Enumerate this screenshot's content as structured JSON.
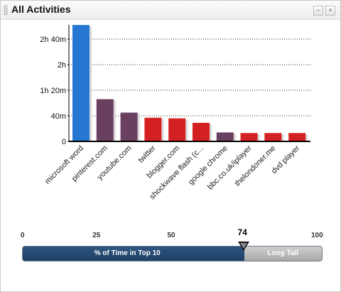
{
  "window": {
    "title": "All Activities",
    "minimize_symbol": "–",
    "close_symbol": "×"
  },
  "chart_data": {
    "type": "bar",
    "title": "",
    "xlabel": "",
    "ylabel": "",
    "y_unit": "minutes",
    "ylim": [
      0,
      180
    ],
    "y_ticks": [
      0,
      40,
      80,
      120,
      160
    ],
    "y_tick_labels": [
      "0",
      "40m",
      "1h 20m",
      "2h",
      "2h 40m"
    ],
    "grid": true,
    "categories": [
      "microsoft word",
      "pinterest.com",
      "youtube.com",
      "twitter",
      "blogger.com",
      "shockwave flash (c...",
      "google chrome",
      "bbc.co.uk/iplayer",
      "thelondoner.me",
      "dvd player"
    ],
    "values": [
      182,
      66,
      45,
      37,
      36,
      29,
      14,
      13,
      13,
      13
    ],
    "colors": [
      "#2677d1",
      "#6a4060",
      "#6a4060",
      "#d42020",
      "#d42020",
      "#d42020",
      "#6a4060",
      "#d42020",
      "#d42020",
      "#d42020"
    ]
  },
  "slider": {
    "scale": [
      0,
      25,
      50,
      100
    ],
    "scale_labels": [
      "0",
      "25",
      "50",
      "100"
    ],
    "value": 74,
    "value_label": "74",
    "left_label": "% of Time in Top 10",
    "right_label": "Long Tail",
    "fill_color": "#1e3f63",
    "rest_color": "#b8b8b8"
  }
}
